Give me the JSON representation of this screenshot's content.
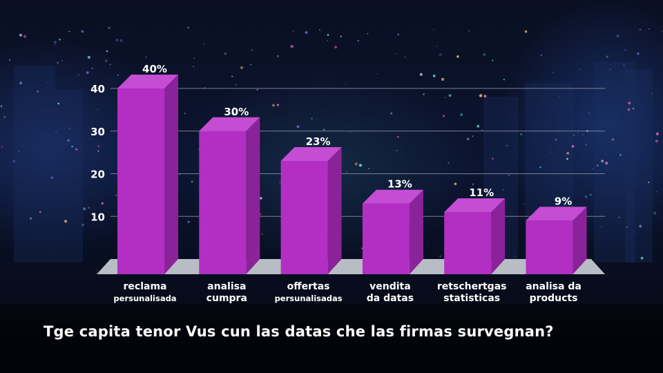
{
  "caption": "Tge capita tenor Vus cun las datas che las firmas survegnan?",
  "colors": {
    "bar_front": "#b32fc4",
    "bar_side": "#8a2399",
    "bar_top": "#c44dd4",
    "floor": "#b8bcc4",
    "gridline": "#8b93a8",
    "text": "#ffffff"
  },
  "chart_data": {
    "type": "bar",
    "categories": [
      [
        "reclama",
        "persunalisada"
      ],
      [
        "analisa",
        "cumpra"
      ],
      [
        "offertas",
        "persunalisadas"
      ],
      [
        "vendita",
        "da datas"
      ],
      [
        "retschertgas",
        "statisticas"
      ],
      [
        "analisa da",
        "products"
      ]
    ],
    "values": [
      40,
      30,
      23,
      13,
      11,
      9
    ],
    "value_labels": [
      "40%",
      "30%",
      "23%",
      "13%",
      "11%",
      "9%"
    ],
    "yticks": [
      10,
      20,
      30,
      40
    ],
    "ylim": [
      0,
      40
    ],
    "grid": true,
    "three_d": true
  }
}
